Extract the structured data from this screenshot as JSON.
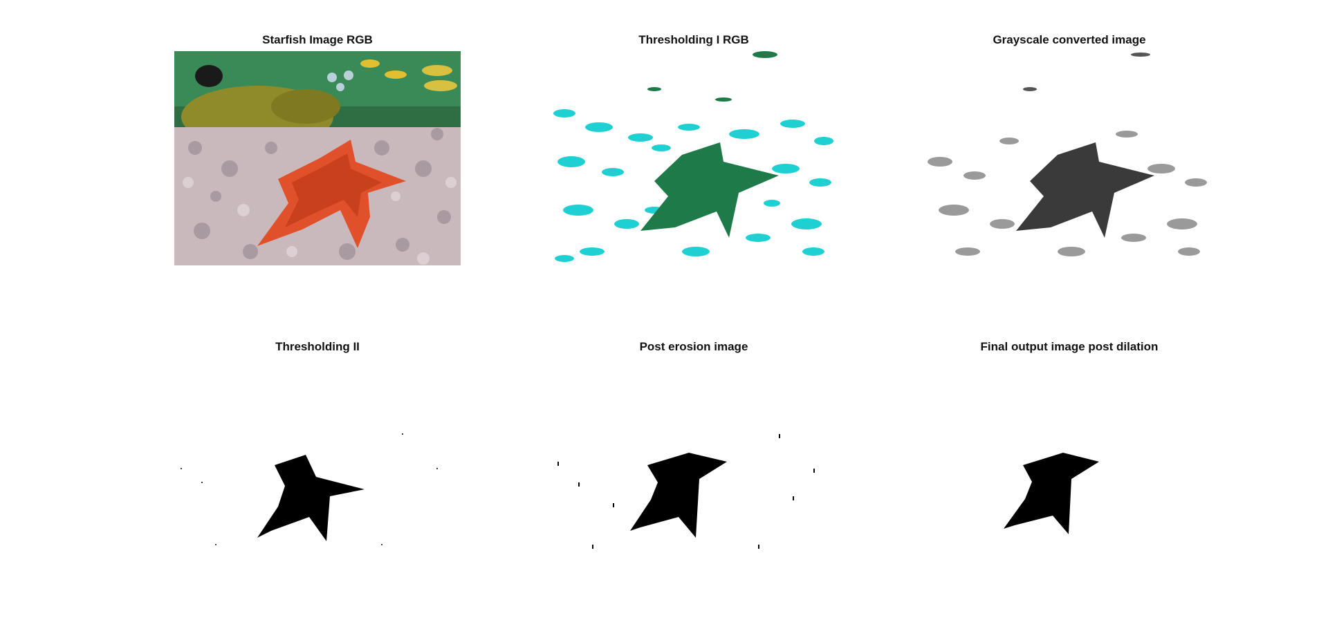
{
  "figure": {
    "panels": [
      {
        "title": "Starfish Image RGB"
      },
      {
        "title": "Thresholding I RGB"
      },
      {
        "title": "Grayscale converted image"
      },
      {
        "title": "Thresholding II"
      },
      {
        "title": "Post erosion image"
      },
      {
        "title": "Final output image post dilation"
      }
    ]
  },
  "colors": {
    "background": "#ffffff",
    "ocean": "#2e7a4a",
    "coral": "#cdbfc2",
    "sponge": "#8f8a2a",
    "starfish": "#e0502a",
    "threshold_cyan": "#1fd0d3",
    "threshold_green": "#1f7a4a",
    "gray": "#8a8a8a",
    "black": "#000000"
  }
}
